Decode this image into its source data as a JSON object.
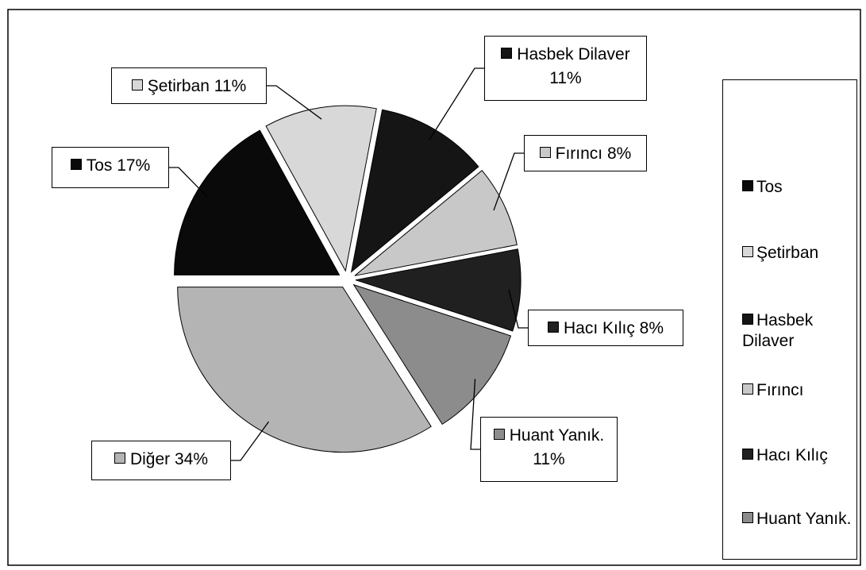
{
  "chart_data": {
    "type": "pie",
    "categories": [
      "Tos",
      "Şetirban",
      "Hasbek Dilaver",
      "Fırıncı",
      "Hacı Kılıç",
      "Huant Yanık.",
      "Diğer"
    ],
    "values": [
      17,
      11,
      11,
      8,
      8,
      11,
      34
    ],
    "value_labels": [
      "17%",
      "11%",
      "11%",
      "8%",
      "8%",
      "11%",
      "34%"
    ],
    "colors": [
      "#0a0a0a",
      "#d8d8d8",
      "#151515",
      "#c8c8c8",
      "#202020",
      "#8c8c8c",
      "#b4b4b4"
    ],
    "legend": "right"
  }
}
